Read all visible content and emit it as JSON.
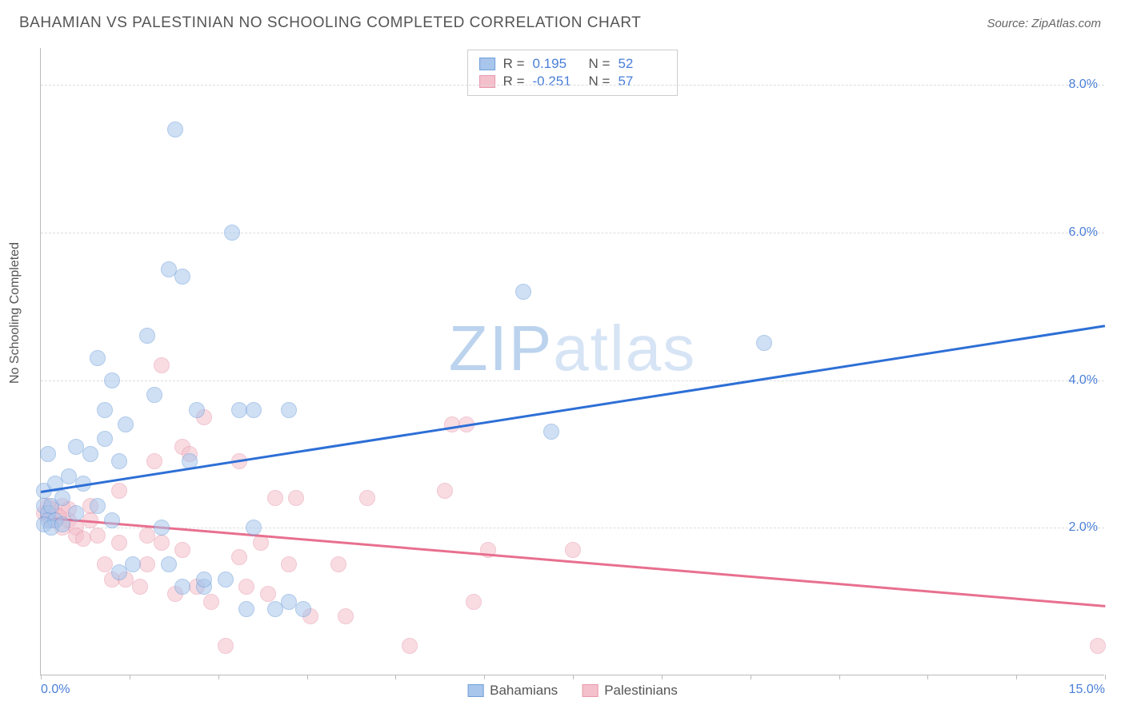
{
  "header": {
    "title": "BAHAMIAN VS PALESTINIAN NO SCHOOLING COMPLETED CORRELATION CHART",
    "source": "Source: ZipAtlas.com"
  },
  "ylabel": "No Schooling Completed",
  "watermark": {
    "part1": "ZIP",
    "part2": "atlas"
  },
  "chart": {
    "type": "scatter",
    "xlim": [
      0,
      15
    ],
    "ylim": [
      0,
      8.5
    ],
    "x_tick_positions": [
      0,
      1.25,
      2.5,
      3.75,
      5,
      6.25,
      7.5,
      8.75,
      10,
      11.25,
      12.5,
      13.75,
      15
    ],
    "x_tick_labels_show": {
      "0": "0.0%",
      "15": "15.0%"
    },
    "y_gridlines": [
      2,
      4,
      6,
      8
    ],
    "y_tick_labels": {
      "2": "2.0%",
      "4": "4.0%",
      "6": "6.0%",
      "8": "8.0%"
    },
    "background_color": "#ffffff",
    "grid_color": "#dddddd",
    "axis_color": "#bbbbbb",
    "tick_label_color": "#4a7fd8",
    "marker_radius": 10,
    "marker_opacity": 0.55,
    "line_width": 2.5
  },
  "series": {
    "bahamians": {
      "label": "Bahamians",
      "fill_color": "#a8c5ec",
      "stroke_color": "#6fa0da",
      "line_color": "#2d6fd6",
      "R": "0.195",
      "N": "52",
      "trend": {
        "x1": 0,
        "y1": 2.5,
        "x2": 15,
        "y2": 4.75
      },
      "points": [
        [
          0.05,
          2.5
        ],
        [
          0.05,
          2.3
        ],
        [
          0.1,
          2.2
        ],
        [
          0.1,
          2.1
        ],
        [
          0.1,
          3.0
        ],
        [
          0.15,
          2.3
        ],
        [
          0.2,
          2.6
        ],
        [
          0.2,
          2.1
        ],
        [
          0.3,
          2.4
        ],
        [
          0.4,
          2.7
        ],
        [
          0.5,
          2.2
        ],
        [
          0.5,
          3.1
        ],
        [
          0.6,
          2.6
        ],
        [
          0.7,
          3.0
        ],
        [
          0.8,
          2.3
        ],
        [
          0.8,
          4.3
        ],
        [
          0.9,
          3.6
        ],
        [
          0.9,
          3.2
        ],
        [
          1.0,
          4.0
        ],
        [
          1.0,
          2.1
        ],
        [
          1.1,
          2.9
        ],
        [
          1.1,
          1.4
        ],
        [
          1.2,
          3.4
        ],
        [
          1.3,
          1.5
        ],
        [
          1.5,
          4.6
        ],
        [
          1.6,
          3.8
        ],
        [
          1.7,
          2.0
        ],
        [
          1.8,
          5.5
        ],
        [
          1.8,
          1.5
        ],
        [
          1.9,
          7.4
        ],
        [
          2.0,
          5.4
        ],
        [
          2.0,
          1.2
        ],
        [
          2.1,
          2.9
        ],
        [
          2.2,
          3.6
        ],
        [
          2.3,
          1.2
        ],
        [
          2.3,
          1.3
        ],
        [
          2.6,
          1.3
        ],
        [
          2.7,
          6.0
        ],
        [
          2.8,
          3.6
        ],
        [
          2.9,
          0.9
        ],
        [
          3.0,
          2.0
        ],
        [
          3.0,
          3.6
        ],
        [
          3.3,
          0.9
        ],
        [
          3.5,
          3.6
        ],
        [
          3.5,
          1.0
        ],
        [
          3.7,
          0.9
        ],
        [
          6.8,
          5.2
        ],
        [
          7.2,
          3.3
        ],
        [
          10.2,
          4.5
        ],
        [
          0.05,
          2.05
        ],
        [
          0.15,
          2.0
        ],
        [
          0.3,
          2.05
        ]
      ]
    },
    "palestinians": {
      "label": "Palestinians",
      "fill_color": "#f4c0cb",
      "stroke_color": "#e89aae",
      "line_color": "#e86f8f",
      "R": "-0.251",
      "N": "57",
      "trend": {
        "x1": 0,
        "y1": 2.15,
        "x2": 15,
        "y2": 0.95
      },
      "points": [
        [
          0.05,
          2.2
        ],
        [
          0.1,
          2.15
        ],
        [
          0.1,
          2.3
        ],
        [
          0.15,
          2.1
        ],
        [
          0.2,
          2.1
        ],
        [
          0.2,
          2.2
        ],
        [
          0.3,
          2.3
        ],
        [
          0.3,
          2.0
        ],
        [
          0.4,
          2.1
        ],
        [
          0.4,
          2.25
        ],
        [
          0.5,
          2.0
        ],
        [
          0.5,
          1.9
        ],
        [
          0.6,
          1.85
        ],
        [
          0.7,
          2.3
        ],
        [
          0.7,
          2.1
        ],
        [
          0.8,
          1.9
        ],
        [
          0.9,
          1.5
        ],
        [
          1.0,
          1.3
        ],
        [
          1.1,
          2.5
        ],
        [
          1.1,
          1.8
        ],
        [
          1.2,
          1.3
        ],
        [
          1.4,
          1.2
        ],
        [
          1.5,
          1.9
        ],
        [
          1.5,
          1.5
        ],
        [
          1.6,
          2.9
        ],
        [
          1.7,
          4.2
        ],
        [
          1.7,
          1.8
        ],
        [
          1.9,
          1.1
        ],
        [
          2.0,
          3.1
        ],
        [
          2.0,
          1.7
        ],
        [
          2.1,
          3.0
        ],
        [
          2.2,
          1.2
        ],
        [
          2.3,
          3.5
        ],
        [
          2.4,
          1.0
        ],
        [
          2.6,
          0.4
        ],
        [
          2.8,
          1.6
        ],
        [
          2.8,
          2.9
        ],
        [
          2.9,
          1.2
        ],
        [
          3.1,
          1.8
        ],
        [
          3.2,
          1.1
        ],
        [
          3.3,
          2.4
        ],
        [
          3.5,
          1.5
        ],
        [
          3.6,
          2.4
        ],
        [
          3.8,
          0.8
        ],
        [
          4.2,
          1.5
        ],
        [
          4.3,
          0.8
        ],
        [
          4.6,
          2.4
        ],
        [
          5.2,
          0.4
        ],
        [
          5.7,
          2.5
        ],
        [
          5.8,
          3.4
        ],
        [
          6.0,
          3.4
        ],
        [
          6.1,
          1.0
        ],
        [
          6.3,
          1.7
        ],
        [
          7.5,
          1.7
        ],
        [
          14.9,
          0.4
        ],
        [
          0.15,
          2.25
        ],
        [
          0.25,
          2.15
        ]
      ]
    }
  },
  "legend_top": {
    "r_label": "R =",
    "n_label": "N ="
  }
}
